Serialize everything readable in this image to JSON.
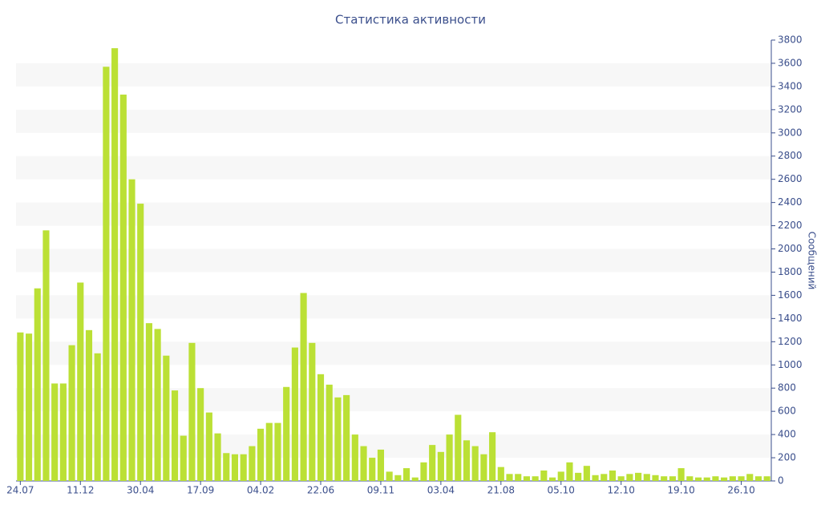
{
  "chart_data": {
    "type": "bar",
    "title": "Статистика активности",
    "y_axis_label": "Сообщений",
    "categories": [
      "24.07",
      null,
      null,
      null,
      null,
      null,
      null,
      "11.12",
      null,
      null,
      null,
      null,
      null,
      null,
      "30.04",
      null,
      null,
      null,
      null,
      null,
      null,
      "17.09",
      null,
      null,
      null,
      null,
      null,
      null,
      "04.02",
      null,
      null,
      null,
      null,
      null,
      null,
      "22.06",
      null,
      null,
      null,
      null,
      null,
      null,
      "09.11",
      null,
      null,
      null,
      null,
      null,
      null,
      "03.04",
      null,
      null,
      null,
      null,
      null,
      null,
      "21.08",
      null,
      null,
      null,
      null,
      null,
      null,
      "05.10",
      null,
      null,
      null,
      null,
      null,
      null,
      "12.10",
      null,
      null,
      null,
      null,
      null,
      null,
      "19.10",
      null,
      null,
      null,
      null,
      null,
      null,
      "26.10",
      null,
      null,
      null
    ],
    "values": [
      1280,
      1270,
      1660,
      2160,
      840,
      840,
      1170,
      1710,
      1300,
      1100,
      3570,
      3730,
      3330,
      2600,
      2390,
      1360,
      1310,
      1080,
      780,
      390,
      1190,
      800,
      590,
      410,
      240,
      230,
      230,
      300,
      450,
      500,
      500,
      810,
      1150,
      1620,
      1190,
      920,
      830,
      720,
      740,
      400,
      300,
      200,
      270,
      80,
      50,
      110,
      30,
      160,
      310,
      250,
      400,
      570,
      350,
      300,
      230,
      420,
      120,
      60,
      60,
      40,
      40,
      90,
      30,
      80,
      160,
      70,
      130,
      50,
      60,
      90,
      40,
      60,
      70,
      60,
      50,
      40,
      40,
      110,
      40,
      30,
      30,
      40,
      30,
      40,
      40,
      60,
      40,
      40
    ],
    "color": "#bbe035",
    "ylim": [
      0,
      3800
    ],
    "yticks": [
      0,
      200,
      400,
      600,
      800,
      1000,
      1200,
      1400,
      1600,
      1800,
      2000,
      2200,
      2400,
      2600,
      2800,
      3000,
      3200,
      3400,
      3600,
      3800
    ],
    "grid": "alternating bands",
    "y_axis_side": "right"
  }
}
